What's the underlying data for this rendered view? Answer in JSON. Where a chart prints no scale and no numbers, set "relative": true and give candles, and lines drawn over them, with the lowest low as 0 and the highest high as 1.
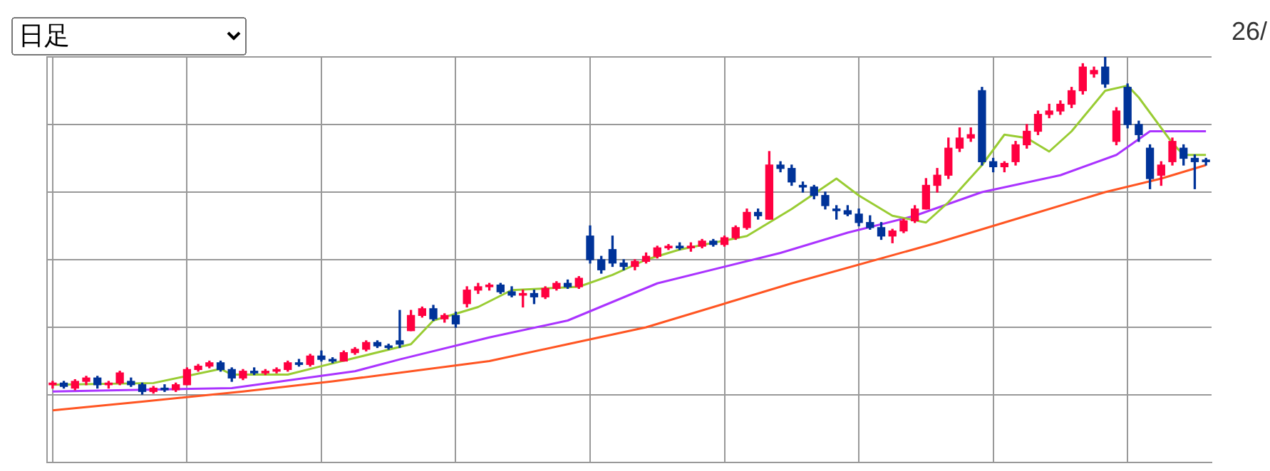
{
  "chart_data": {
    "type": "candlestick",
    "relative": true,
    "grid": true,
    "legend": false,
    "annotations": [
      "日足",
      "26/"
    ],
    "categories": [
      null,
      null,
      null,
      null,
      null,
      null,
      null,
      null,
      null,
      null,
      null,
      null,
      null,
      null,
      null,
      null,
      null,
      null,
      null,
      null,
      null,
      null,
      null,
      null,
      null,
      null,
      null,
      null,
      null,
      null,
      null,
      null,
      null,
      null,
      null,
      null,
      null,
      null,
      null,
      null,
      null,
      null,
      null,
      null,
      null,
      null,
      null,
      null,
      null,
      null,
      null,
      null,
      null,
      null,
      null,
      null,
      null,
      null,
      null,
      null,
      null,
      null,
      null,
      null,
      null,
      null,
      null,
      null,
      null,
      null,
      null,
      null,
      null,
      null,
      null,
      null,
      null,
      null,
      null,
      null,
      null,
      null,
      null,
      null,
      null,
      null,
      null,
      null,
      null,
      null,
      null,
      null,
      null,
      null,
      null,
      null,
      null,
      null,
      null,
      null,
      null,
      null,
      null,
      null
    ],
    "ohlc": [
      [
        0.03,
        0.04,
        0.02,
        0.035
      ],
      [
        0.035,
        0.04,
        0.02,
        0.025
      ],
      [
        0.02,
        0.045,
        0.015,
        0.04
      ],
      [
        0.04,
        0.055,
        0.03,
        0.05
      ],
      [
        0.05,
        0.055,
        0.02,
        0.03
      ],
      [
        0.03,
        0.04,
        0.02,
        0.035
      ],
      [
        0.035,
        0.07,
        0.03,
        0.065
      ],
      [
        0.04,
        0.05,
        0.025,
        0.03
      ],
      [
        0.03,
        0.035,
        0.0,
        0.01
      ],
      [
        0.01,
        0.025,
        0.005,
        0.02
      ],
      [
        0.02,
        0.03,
        0.01,
        0.015
      ],
      [
        0.015,
        0.035,
        0.01,
        0.03
      ],
      [
        0.03,
        0.08,
        0.03,
        0.075
      ],
      [
        0.075,
        0.09,
        0.07,
        0.085
      ],
      [
        0.085,
        0.1,
        0.08,
        0.095
      ],
      [
        0.095,
        0.1,
        0.07,
        0.075
      ],
      [
        0.075,
        0.08,
        0.04,
        0.05
      ],
      [
        0.05,
        0.075,
        0.045,
        0.07
      ],
      [
        0.07,
        0.08,
        0.06,
        0.065
      ],
      [
        0.065,
        0.075,
        0.06,
        0.07
      ],
      [
        0.07,
        0.08,
        0.065,
        0.075
      ],
      [
        0.075,
        0.1,
        0.07,
        0.095
      ],
      [
        0.095,
        0.105,
        0.085,
        0.09
      ],
      [
        0.09,
        0.12,
        0.085,
        0.115
      ],
      [
        0.115,
        0.13,
        0.1,
        0.105
      ],
      [
        0.105,
        0.11,
        0.095,
        0.1
      ],
      [
        0.1,
        0.13,
        0.1,
        0.125
      ],
      [
        0.125,
        0.14,
        0.12,
        0.135
      ],
      [
        0.135,
        0.16,
        0.13,
        0.155
      ],
      [
        0.155,
        0.16,
        0.14,
        0.145
      ],
      [
        0.145,
        0.15,
        0.135,
        0.14
      ],
      [
        0.16,
        0.25,
        0.14,
        0.15
      ],
      [
        0.19,
        0.25,
        0.19,
        0.235
      ],
      [
        0.235,
        0.26,
        0.23,
        0.255
      ],
      [
        0.255,
        0.265,
        0.22,
        0.225
      ],
      [
        0.225,
        0.24,
        0.215,
        0.235
      ],
      [
        0.235,
        0.245,
        0.2,
        0.21
      ],
      [
        0.27,
        0.32,
        0.26,
        0.31
      ],
      [
        0.31,
        0.33,
        0.3,
        0.32
      ],
      [
        0.32,
        0.33,
        0.31,
        0.325
      ],
      [
        0.325,
        0.33,
        0.3,
        0.305
      ],
      [
        0.305,
        0.32,
        0.29,
        0.295
      ],
      [
        0.295,
        0.31,
        0.26,
        0.3
      ],
      [
        0.3,
        0.31,
        0.27,
        0.29
      ],
      [
        0.29,
        0.32,
        0.285,
        0.315
      ],
      [
        0.315,
        0.335,
        0.31,
        0.33
      ],
      [
        0.33,
        0.34,
        0.315,
        0.32
      ],
      [
        0.32,
        0.35,
        0.315,
        0.345
      ],
      [
        0.47,
        0.5,
        0.39,
        0.4
      ],
      [
        0.4,
        0.41,
        0.36,
        0.37
      ],
      [
        0.43,
        0.47,
        0.38,
        0.39
      ],
      [
        0.39,
        0.4,
        0.37,
        0.38
      ],
      [
        0.38,
        0.4,
        0.37,
        0.395
      ],
      [
        0.395,
        0.42,
        0.39,
        0.41
      ],
      [
        0.41,
        0.44,
        0.405,
        0.435
      ],
      [
        0.435,
        0.445,
        0.43,
        0.44
      ],
      [
        0.44,
        0.45,
        0.43,
        0.435
      ],
      [
        0.435,
        0.45,
        0.425,
        0.44
      ],
      [
        0.44,
        0.46,
        0.435,
        0.455
      ],
      [
        0.455,
        0.46,
        0.44,
        0.445
      ],
      [
        0.445,
        0.47,
        0.44,
        0.465
      ],
      [
        0.465,
        0.5,
        0.46,
        0.495
      ],
      [
        0.495,
        0.55,
        0.49,
        0.54
      ],
      [
        0.54,
        0.55,
        0.52,
        0.53
      ],
      [
        0.52,
        0.72,
        0.52,
        0.68
      ],
      [
        0.68,
        0.69,
        0.66,
        0.67
      ],
      [
        0.67,
        0.68,
        0.62,
        0.63
      ],
      [
        0.62,
        0.63,
        0.6,
        0.615
      ],
      [
        0.615,
        0.62,
        0.58,
        0.59
      ],
      [
        0.59,
        0.6,
        0.55,
        0.56
      ],
      [
        0.55,
        0.56,
        0.52,
        0.545
      ],
      [
        0.545,
        0.56,
        0.53,
        0.535
      ],
      [
        0.535,
        0.55,
        0.5,
        0.51
      ],
      [
        0.51,
        0.53,
        0.49,
        0.495
      ],
      [
        0.495,
        0.51,
        0.46,
        0.47
      ],
      [
        0.47,
        0.49,
        0.45,
        0.485
      ],
      [
        0.485,
        0.52,
        0.48,
        0.515
      ],
      [
        0.515,
        0.56,
        0.51,
        0.55
      ],
      [
        0.55,
        0.64,
        0.55,
        0.62
      ],
      [
        0.62,
        0.67,
        0.6,
        0.65
      ],
      [
        0.65,
        0.76,
        0.64,
        0.73
      ],
      [
        0.73,
        0.79,
        0.72,
        0.76
      ],
      [
        0.76,
        0.79,
        0.75,
        0.77
      ],
      [
        0.9,
        0.91,
        0.68,
        0.69
      ],
      [
        0.69,
        0.7,
        0.66,
        0.675
      ],
      [
        0.675,
        0.69,
        0.66,
        0.685
      ],
      [
        0.69,
        0.75,
        0.68,
        0.74
      ],
      [
        0.74,
        0.8,
        0.73,
        0.78
      ],
      [
        0.78,
        0.84,
        0.77,
        0.83
      ],
      [
        0.83,
        0.86,
        0.82,
        0.84
      ],
      [
        0.84,
        0.87,
        0.83,
        0.86
      ],
      [
        0.86,
        0.91,
        0.85,
        0.9
      ],
      [
        0.9,
        0.98,
        0.89,
        0.97
      ],
      [
        0.95,
        0.97,
        0.94,
        0.96
      ],
      [
        0.97,
        1.0,
        0.91,
        0.92
      ],
      [
        0.75,
        0.85,
        0.74,
        0.84
      ],
      [
        0.91,
        0.92,
        0.79,
        0.8
      ],
      [
        0.8,
        0.81,
        0.75,
        0.77
      ],
      [
        0.73,
        0.74,
        0.61,
        0.64
      ],
      [
        0.65,
        0.69,
        0.62,
        0.68
      ],
      [
        0.69,
        0.76,
        0.68,
        0.75
      ],
      [
        0.73,
        0.74,
        0.68,
        0.7
      ],
      [
        0.7,
        0.71,
        0.61,
        0.69
      ],
      [
        0.695,
        0.7,
        0.68,
        0.69
      ]
    ],
    "colors": [
      "#ff0040",
      "#003399",
      "#ff0040",
      "#ff0040",
      "#003399",
      "#ff0040",
      "#ff0040",
      "#003399",
      "#003399",
      "#ff0040",
      "#003399",
      "#ff0040",
      "#ff0040",
      "#ff0040",
      "#ff0040",
      "#003399",
      "#003399",
      "#ff0040",
      "#003399",
      "#ff0040",
      "#ff0040",
      "#ff0040",
      "#003399",
      "#ff0040",
      "#003399",
      "#003399",
      "#ff0040",
      "#ff0040",
      "#ff0040",
      "#003399",
      "#003399",
      "#003399",
      "#ff0040",
      "#ff0040",
      "#003399",
      "#ff0040",
      "#003399",
      "#ff0040",
      "#ff0040",
      "#ff0040",
      "#003399",
      "#003399",
      "#ff0040",
      "#003399",
      "#ff0040",
      "#ff0040",
      "#003399",
      "#ff0040",
      "#003399",
      "#003399",
      "#003399",
      "#003399",
      "#ff0040",
      "#ff0040",
      "#ff0040",
      "#ff0040",
      "#003399",
      "#ff0040",
      "#ff0040",
      "#003399",
      "#ff0040",
      "#ff0040",
      "#ff0040",
      "#003399",
      "#ff0040",
      "#003399",
      "#003399",
      "#003399",
      "#003399",
      "#003399",
      "#003399",
      "#003399",
      "#003399",
      "#003399",
      "#003399",
      "#ff0040",
      "#ff0040",
      "#ff0040",
      "#ff0040",
      "#ff0040",
      "#ff0040",
      "#ff0040",
      "#ff0040",
      "#003399",
      "#003399",
      "#ff0040",
      "#ff0040",
      "#ff0040",
      "#ff0040",
      "#ff0040",
      "#ff0040",
      "#ff0040",
      "#ff0040",
      "#ff0040",
      "#003399",
      "#ff0040",
      "#003399",
      "#003399",
      "#003399",
      "#ff0040",
      "#ff0040",
      "#003399",
      "#003399",
      "#003399"
    ],
    "series": [
      {
        "type": "line",
        "color": "#99cc33",
        "values": [
          0.03,
          null,
          null,
          null,
          null,
          null,
          null,
          null,
          null,
          0.035,
          null,
          null,
          null,
          null,
          null,
          0.077,
          0.06,
          null,
          null,
          null,
          null,
          0.06,
          null,
          null,
          0.085,
          null,
          null,
          null,
          null,
          null,
          null,
          null,
          0.15,
          null,
          0.22,
          null,
          null,
          null,
          0.26,
          null,
          null,
          0.31,
          null,
          null,
          null,
          null,
          null,
          0.32,
          null,
          null,
          0.355,
          null,
          null,
          0.4,
          null,
          null,
          0.43,
          null,
          null,
          null,
          null,
          null,
          0.47,
          null,
          null,
          null,
          0.55,
          null,
          null,
          null,
          0.64,
          null,
          0.59,
          null,
          null,
          0.53,
          null,
          null,
          0.51,
          null,
          0.57,
          null,
          null,
          0.68,
          null,
          0.77,
          null,
          0.76,
          null,
          0.72,
          null,
          0.78,
          null,
          null,
          0.9,
          null,
          0.915,
          0.88,
          null,
          null,
          0.745,
          0.71,
          null,
          0.71
        ]
      },
      {
        "type": "line",
        "color": "#aa33ff",
        "values": [
          0.01,
          null,
          null,
          null,
          null,
          null,
          null,
          null,
          null,
          null,
          null,
          null,
          null,
          null,
          null,
          null,
          0.02,
          null,
          null,
          null,
          null,
          null,
          null,
          null,
          null,
          null,
          null,
          0.07,
          null,
          null,
          null,
          0.105,
          null,
          null,
          null,
          null,
          null,
          null,
          null,
          0.17,
          null,
          null,
          null,
          null,
          null,
          null,
          0.22,
          null,
          null,
          null,
          null,
          null,
          null,
          null,
          0.33,
          null,
          null,
          null,
          null,
          null,
          null,
          null,
          null,
          null,
          null,
          0.42,
          null,
          null,
          null,
          null,
          null,
          0.48,
          null,
          null,
          null,
          null,
          null,
          0.53,
          null,
          null,
          null,
          null,
          null,
          0.6,
          null,
          null,
          null,
          null,
          null,
          null,
          0.65,
          null,
          null,
          null,
          null,
          0.71,
          null,
          null,
          0.78,
          null,
          null,
          null,
          null,
          0.78
        ]
      },
      {
        "type": "line",
        "color": "#ff5522",
        "values": [
          -0.046,
          null,
          null,
          null,
          null,
          null,
          null,
          null,
          -0.02,
          null,
          null,
          null,
          null,
          null,
          null,
          null,
          null,
          0.01,
          null,
          null,
          null,
          null,
          null,
          null,
          null,
          0.04,
          null,
          null,
          null,
          null,
          null,
          null,
          null,
          null,
          null,
          null,
          null,
          null,
          null,
          0.1,
          null,
          null,
          null,
          null,
          null,
          null,
          0.15,
          null,
          null,
          null,
          null,
          null,
          null,
          0.2,
          null,
          null,
          null,
          null,
          null,
          null,
          null,
          null,
          null,
          null,
          null,
          null,
          0.33,
          null,
          null,
          null,
          null,
          null,
          null,
          null,
          null,
          null,
          null,
          null,
          null,
          0.45,
          null,
          null,
          null,
          null,
          null,
          null,
          null,
          0.53,
          null,
          null,
          null,
          null,
          null,
          null,
          0.6,
          null,
          null,
          null,
          null,
          0.64,
          null,
          null,
          null,
          0.68
        ]
      }
    ]
  }
}
